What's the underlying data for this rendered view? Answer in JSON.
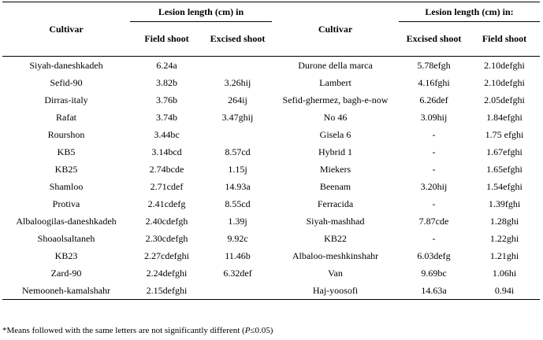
{
  "table": {
    "header": {
      "left_group": "Lesion length (cm) in",
      "right_group": "Lesion length (cm) in:",
      "columns": [
        "Cultivar",
        "Field shoot",
        "Excised shoot",
        "Cultivar",
        "Excised shoot",
        "Field shoot"
      ]
    },
    "rows": [
      [
        "Siyah-daneshkadeh",
        "6.24a",
        null,
        "Durone della marca",
        "5.78efgh",
        "2.10defghi"
      ],
      [
        "Sefid-90",
        "3.82b",
        "3.26hij",
        "Lambert",
        "4.16fghi",
        "2.10defghi"
      ],
      [
        "Dirras-italy",
        "3.76b",
        "264ij",
        "Sefid-ghermez, bagh-e-now",
        "6.26def",
        "2.05defghi"
      ],
      [
        "Rafat",
        "3.74b",
        "3.47ghij",
        "No 46",
        "3.09hij",
        "1.84efghi"
      ],
      [
        "Rourshon",
        "3.44bc",
        null,
        "Gisela 6",
        "-",
        "1.75 efghi"
      ],
      [
        "KB5",
        "3.14bcd",
        "8.57cd",
        "Hybrid 1",
        "-",
        "1.67efghi"
      ],
      [
        "KB25",
        "2.74bcde",
        "1.15j",
        "Miekers",
        "-",
        "1.65efghi"
      ],
      [
        "Shamloo",
        "2.71cdef",
        "14.93a",
        "Beenam",
        "3.20hij",
        "1.54efghi"
      ],
      [
        "Protiva",
        "2.41cdefg",
        "8.55cd",
        "Ferracida",
        "-",
        "1.39fghi"
      ],
      [
        "Albaloogilas-daneshkadeh",
        "2.40cdefgh",
        "1.39j",
        "Siyah-mashhad",
        "7.87cde",
        "1.28ghi"
      ],
      [
        "Shoaolsaltaneh",
        "2.30cdefgh",
        "9.92c",
        "KB22",
        "-",
        "1.22ghi"
      ],
      [
        "KB23",
        "2.27cdefghi",
        "11.46b",
        "Albaloo-meshkinshahr",
        "6.03defg",
        "1.21ghi"
      ],
      [
        "Zard-90",
        "2.24defghi",
        "6.32def",
        "Van",
        "9.69bc",
        "1.06hi"
      ],
      [
        "Nemooneh-kamalshahr",
        "2.15defghi",
        null,
        "Haj-yoosofi",
        "14.63a",
        "0.94i"
      ]
    ],
    "footnote": {
      "before": "*Means followed with the same letters are not significantly different (",
      "italic": "P",
      "after": "≤0.05)"
    }
  }
}
